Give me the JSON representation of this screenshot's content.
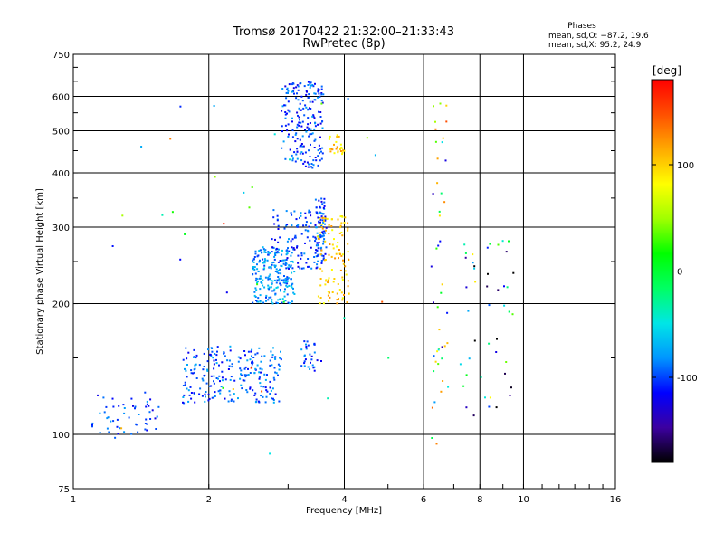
{
  "chart_data": {
    "type": "scatter",
    "title": "Tromsø 20170422 21:32:00–21:33:43",
    "subtitle": "RwPretec (8p)",
    "xlabel": "Frequency [MHz]",
    "ylabel": "Stationary phase Virtual Height [km]",
    "xscale": "log",
    "yscale": "log",
    "xlim": [
      1,
      16
    ],
    "ylim": [
      75,
      750
    ],
    "x_ticks": [
      1,
      2,
      4,
      6,
      8,
      10,
      16
    ],
    "y_ticks": [
      75,
      100,
      200,
      300,
      400,
      500,
      600,
      750
    ],
    "grid": true,
    "legend": {
      "heading": "Phases",
      "line1": "mean, sd,O: −87.2, 19.6",
      "line2": "mean, sd,X:  95.2, 24.9"
    },
    "colorbar": {
      "label": "[deg]",
      "range": [
        -180,
        180
      ],
      "ticks": [
        100,
        0,
        -100
      ],
      "colors": [
        "#000000",
        "#3c00a0",
        "#0000ff",
        "#0096ff",
        "#00e6e6",
        "#00ff64",
        "#00ff00",
        "#a0ff00",
        "#ffff00",
        "#ffaa00",
        "#ff5000",
        "#ff0000"
      ]
    },
    "clusters": [
      {
        "name": "o-trace-low",
        "xmin": 1.1,
        "xmax": 1.55,
        "ymin": 98,
        "ymax": 125,
        "n": 55,
        "phase": -100
      },
      {
        "name": "o-trace-E",
        "xmin": 1.75,
        "xmax": 2.9,
        "ymin": 118,
        "ymax": 160,
        "n": 240,
        "phase": -95
      },
      {
        "name": "o-trace-F1",
        "xmin": 2.5,
        "xmax": 3.1,
        "ymin": 200,
        "ymax": 270,
        "n": 220,
        "phase": -80
      },
      {
        "name": "o-trace-F1-upper",
        "xmin": 2.75,
        "xmax": 3.6,
        "ymin": 240,
        "ymax": 330,
        "n": 120,
        "phase": -100
      },
      {
        "name": "o-trace-F2",
        "xmin": 3.45,
        "xmax": 3.65,
        "ymin": 250,
        "ymax": 350,
        "n": 70,
        "phase": -100
      },
      {
        "name": "x-trace-F2",
        "xmin": 3.5,
        "xmax": 4.1,
        "ymin": 200,
        "ymax": 320,
        "n": 110,
        "phase": 100
      },
      {
        "name": "o-trace-multi",
        "xmin": 2.9,
        "xmax": 3.6,
        "ymin": 410,
        "ymax": 650,
        "n": 200,
        "phase": -100
      },
      {
        "name": "x-trace-multi",
        "xmin": 3.7,
        "xmax": 4.0,
        "ymin": 440,
        "ymax": 490,
        "n": 25,
        "phase": 100
      },
      {
        "name": "o-trace-mid",
        "xmin": 3.2,
        "xmax": 3.6,
        "ymin": 140,
        "ymax": 165,
        "n": 30,
        "phase": -100
      },
      {
        "name": "scattered-6.5",
        "xmin": 6.2,
        "xmax": 6.8,
        "ymin": 90,
        "ymax": 610,
        "n": 45,
        "phase": 0
      },
      {
        "name": "scattered-8",
        "xmin": 7.2,
        "xmax": 9.5,
        "ymin": 110,
        "ymax": 280,
        "n": 45,
        "phase": -60
      },
      {
        "name": "scattered-misc",
        "xmin": 1.2,
        "xmax": 5.2,
        "ymin": 85,
        "ymax": 640,
        "n": 35,
        "phase": 20
      }
    ]
  }
}
